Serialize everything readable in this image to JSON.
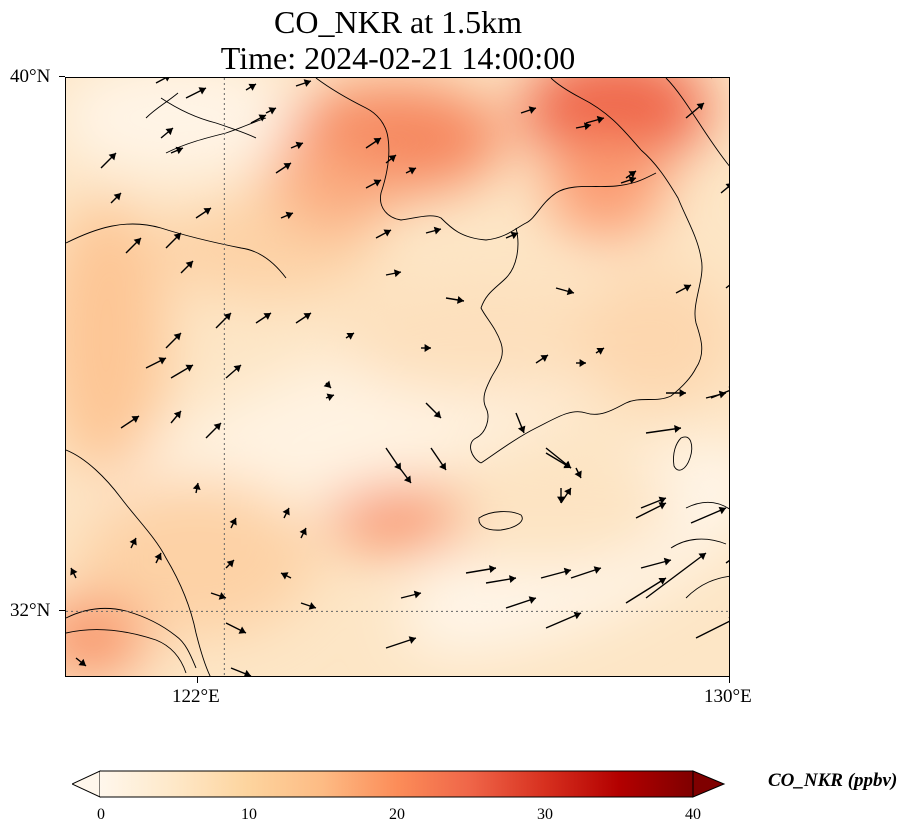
{
  "title": {
    "line1": "CO_NKR at 1.5km",
    "line2": "Time: 2024-02-21 14:00:00"
  },
  "map": {
    "lon_range": [
      119.5,
      130
    ],
    "lat_range": [
      31,
      40
    ],
    "lon_ticks": [
      {
        "value": 122,
        "label": "122°E"
      },
      {
        "value": 130,
        "label": "130°E"
      }
    ],
    "lat_ticks": [
      {
        "value": 40,
        "label": "40°N"
      },
      {
        "value": 32,
        "label": "32°N"
      }
    ],
    "gridlines": {
      "lon": [
        122
      ],
      "lat": [
        32
      ],
      "style": "dotted"
    },
    "field": "CO_NKR concentration",
    "wind_vectors": "shown"
  },
  "colorbar": {
    "label": "CO_NKR (ppbv)",
    "ticks": [
      "0",
      "10",
      "20",
      "30",
      "40"
    ],
    "min": 0,
    "max": 40,
    "extend": "both",
    "colormap": "OrRd",
    "colors": [
      "#fff7ec",
      "#fee8c8",
      "#fdd49e",
      "#fdbb84",
      "#fc8d59",
      "#ef6548",
      "#d7301f",
      "#b30000",
      "#7f0000"
    ]
  }
}
